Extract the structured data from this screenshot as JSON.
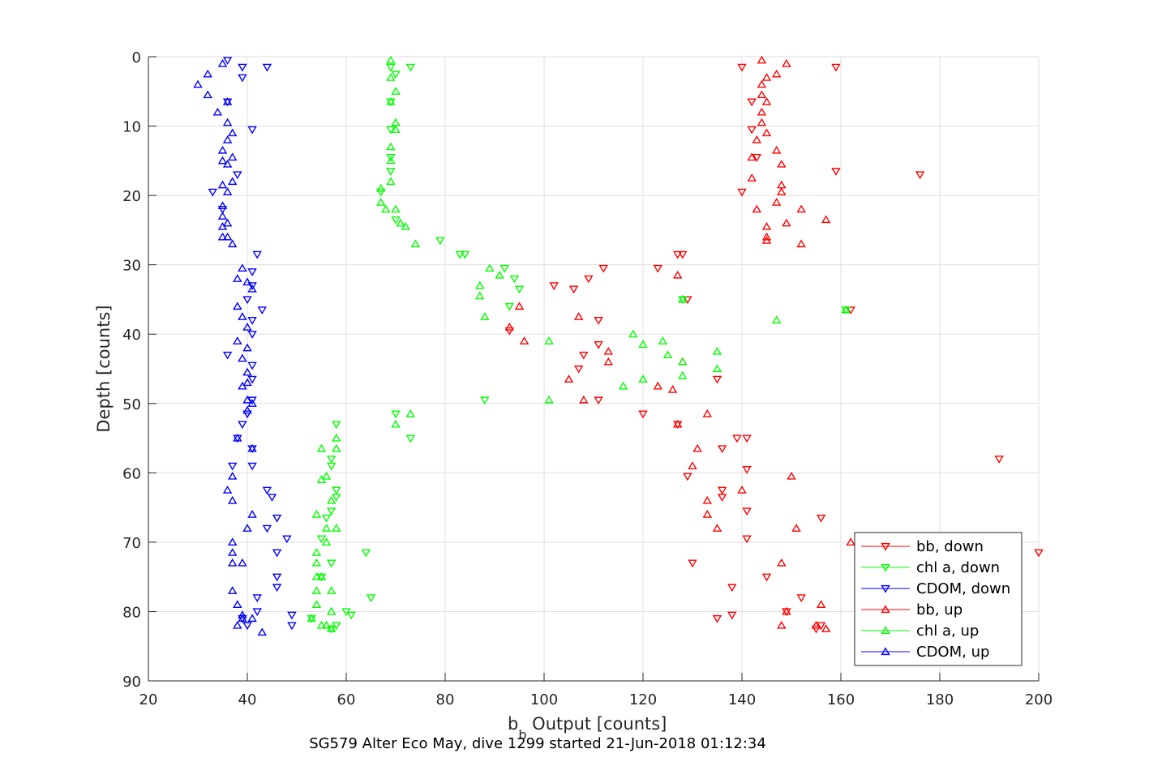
{
  "chart_data": {
    "type": "scatter",
    "caption": "SG579 Alter Eco May, dive 1299 started 21-Jun-2018 01:12:34",
    "xlabel_main": "b",
    "xlabel_sub": "b",
    "xlabel_rest": " Output [counts]",
    "ylabel": "Depth [counts]",
    "xlim": [
      20,
      200
    ],
    "ylim": [
      0,
      90
    ],
    "y_reversed": true,
    "grid": true,
    "legend_position": "bottom-right",
    "xticks": [
      20,
      40,
      60,
      80,
      100,
      120,
      140,
      160,
      180,
      200
    ],
    "yticks": [
      0,
      10,
      20,
      30,
      40,
      50,
      60,
      70,
      80,
      90
    ],
    "series": [
      {
        "name": "bb, down",
        "color": "#ff0000",
        "marker": "triangle-down",
        "points": [
          [
            140,
            1.5
          ],
          [
            159,
            1.5
          ],
          [
            142,
            6.5
          ],
          [
            142,
            10.5
          ],
          [
            143,
            14.5
          ],
          [
            176,
            17
          ],
          [
            159,
            16.5
          ],
          [
            140,
            19.5
          ],
          [
            127,
            28.5
          ],
          [
            128,
            28.5
          ],
          [
            112,
            30.5
          ],
          [
            123,
            30.5
          ],
          [
            106,
            33.5
          ],
          [
            109,
            32
          ],
          [
            102,
            33
          ],
          [
            129,
            35
          ],
          [
            162,
            36.5
          ],
          [
            111,
            38
          ],
          [
            93,
            39.5
          ],
          [
            111,
            41.5
          ],
          [
            108,
            43
          ],
          [
            107,
            45
          ],
          [
            135,
            46.5
          ],
          [
            111,
            49.5
          ],
          [
            120,
            51.5
          ],
          [
            127,
            53
          ],
          [
            139,
            55
          ],
          [
            141,
            55
          ],
          [
            136,
            56.5
          ],
          [
            192,
            58
          ],
          [
            141,
            59.5
          ],
          [
            129,
            60.5
          ],
          [
            136,
            62.5
          ],
          [
            136,
            63.5
          ],
          [
            141,
            65.5
          ],
          [
            156,
            66.5
          ],
          [
            141,
            69.5
          ],
          [
            200,
            71.5
          ],
          [
            130,
            73
          ],
          [
            138,
            76.5
          ],
          [
            145,
            75
          ],
          [
            138,
            80.5
          ],
          [
            135,
            81
          ],
          [
            149,
            80
          ],
          [
            152,
            78
          ],
          [
            156,
            82
          ],
          [
            155,
            82.5
          ]
        ]
      },
      {
        "name": "chl a, down",
        "color": "#00ff00",
        "marker": "triangle-down",
        "points": [
          [
            69,
            1.5
          ],
          [
            73,
            1.5
          ],
          [
            70,
            2.5
          ],
          [
            69,
            6.5
          ],
          [
            69,
            10.5
          ],
          [
            69,
            14.5
          ],
          [
            69,
            16.5
          ],
          [
            67,
            19.5
          ],
          [
            70,
            23.5
          ],
          [
            79,
            26.5
          ],
          [
            83,
            28.5
          ],
          [
            84,
            28.5
          ],
          [
            92,
            30.5
          ],
          [
            94,
            32
          ],
          [
            95,
            33.5
          ],
          [
            128,
            35
          ],
          [
            161,
            36.5
          ],
          [
            93,
            36
          ],
          [
            70,
            51.5
          ],
          [
            73,
            55
          ],
          [
            88,
            49.5
          ],
          [
            58,
            53
          ],
          [
            57,
            58
          ],
          [
            57,
            59
          ],
          [
            58,
            62.5
          ],
          [
            58,
            63.5
          ],
          [
            57,
            65.5
          ],
          [
            56,
            66.5
          ],
          [
            55,
            69.5
          ],
          [
            64,
            71.5
          ],
          [
            57,
            73
          ],
          [
            65,
            78
          ],
          [
            55,
            75
          ],
          [
            60,
            80
          ],
          [
            61,
            80.5
          ],
          [
            53,
            81
          ],
          [
            58,
            82
          ],
          [
            57,
            82.5
          ]
        ]
      },
      {
        "name": "CDOM, down",
        "color": "#0000ff",
        "marker": "triangle-down",
        "points": [
          [
            36,
            0.5
          ],
          [
            39,
            1.5
          ],
          [
            44,
            1.5
          ],
          [
            39,
            3
          ],
          [
            36,
            6.5
          ],
          [
            41,
            10.5
          ],
          [
            38,
            17
          ],
          [
            33,
            19.5
          ],
          [
            35,
            22
          ],
          [
            42,
            28.5
          ],
          [
            41,
            31
          ],
          [
            41,
            33
          ],
          [
            40,
            35
          ],
          [
            43,
            36.5
          ],
          [
            41,
            38
          ],
          [
            41,
            40
          ],
          [
            36,
            43
          ],
          [
            41,
            44.5
          ],
          [
            41,
            46.5
          ],
          [
            41,
            49.5
          ],
          [
            40,
            51.5
          ],
          [
            39,
            53
          ],
          [
            38,
            55
          ],
          [
            41,
            56.5
          ],
          [
            37,
            59
          ],
          [
            41,
            59
          ],
          [
            44,
            62.5
          ],
          [
            45,
            63.5
          ],
          [
            46,
            66.5
          ],
          [
            44,
            68
          ],
          [
            48,
            69.5
          ],
          [
            46,
            71.5
          ],
          [
            46,
            75
          ],
          [
            46,
            76.5
          ],
          [
            42,
            78
          ],
          [
            42,
            80
          ],
          [
            49,
            80.5
          ],
          [
            49,
            82
          ],
          [
            39,
            81
          ],
          [
            40,
            82
          ]
        ]
      },
      {
        "name": "bb, up",
        "color": "#ff0000",
        "marker": "triangle-up",
        "points": [
          [
            144,
            0.5
          ],
          [
            149,
            1
          ],
          [
            147,
            2.5
          ],
          [
            145,
            3
          ],
          [
            144,
            4
          ],
          [
            144,
            5.5
          ],
          [
            145,
            6.5
          ],
          [
            144,
            8
          ],
          [
            144,
            9.5
          ],
          [
            145,
            11
          ],
          [
            143,
            12
          ],
          [
            147,
            13.5
          ],
          [
            142,
            14.5
          ],
          [
            148,
            15.5
          ],
          [
            142,
            17.5
          ],
          [
            148,
            18.5
          ],
          [
            148,
            19.5
          ],
          [
            147,
            21
          ],
          [
            143,
            22
          ],
          [
            152,
            22
          ],
          [
            157,
            23.5
          ],
          [
            149,
            24
          ],
          [
            145,
            24.5
          ],
          [
            145,
            26
          ],
          [
            145,
            26.5
          ],
          [
            152,
            27
          ],
          [
            127,
            31.5
          ],
          [
            95,
            36
          ],
          [
            107,
            37.5
          ],
          [
            93,
            39
          ],
          [
            96,
            41
          ],
          [
            113,
            42.5
          ],
          [
            113,
            44
          ],
          [
            128,
            44
          ],
          [
            105,
            46.5
          ],
          [
            123,
            47.5
          ],
          [
            126,
            48
          ],
          [
            108,
            49.5
          ],
          [
            127,
            53
          ],
          [
            133,
            51.5
          ],
          [
            131,
            56.5
          ],
          [
            130,
            59
          ],
          [
            150,
            60.5
          ],
          [
            140,
            62.5
          ],
          [
            133,
            64
          ],
          [
            133,
            66
          ],
          [
            135,
            68
          ],
          [
            151,
            68
          ],
          [
            162,
            70
          ],
          [
            148,
            73
          ],
          [
            156,
            79
          ],
          [
            149,
            80
          ],
          [
            148,
            82
          ],
          [
            155,
            82
          ],
          [
            157,
            82.5
          ]
        ]
      },
      {
        "name": "chl a, up",
        "color": "#00ff00",
        "marker": "triangle-up",
        "points": [
          [
            69,
            0.5
          ],
          [
            69,
            3
          ],
          [
            70,
            5
          ],
          [
            69,
            6.5
          ],
          [
            70,
            9.5
          ],
          [
            70,
            10.5
          ],
          [
            69,
            13
          ],
          [
            69,
            15
          ],
          [
            69,
            18
          ],
          [
            67,
            19
          ],
          [
            67,
            21
          ],
          [
            68,
            22
          ],
          [
            70,
            22
          ],
          [
            71,
            24
          ],
          [
            72,
            24.5
          ],
          [
            74,
            27
          ],
          [
            89,
            30.5
          ],
          [
            91,
            31.5
          ],
          [
            87,
            33
          ],
          [
            87,
            34.5
          ],
          [
            88,
            37.5
          ],
          [
            101,
            41
          ],
          [
            118,
            40
          ],
          [
            120,
            41.5
          ],
          [
            124,
            41
          ],
          [
            125,
            43
          ],
          [
            135,
            42.5
          ],
          [
            135,
            45
          ],
          [
            128,
            44
          ],
          [
            128,
            46
          ],
          [
            120,
            46.5
          ],
          [
            116,
            47.5
          ],
          [
            101,
            49.5
          ],
          [
            70,
            53
          ],
          [
            73,
            51.5
          ],
          [
            55,
            56.5
          ],
          [
            58,
            56.5
          ],
          [
            58,
            55
          ],
          [
            55,
            61
          ],
          [
            56,
            60.5
          ],
          [
            54,
            66
          ],
          [
            57,
            64
          ],
          [
            56,
            68
          ],
          [
            58,
            68
          ],
          [
            56,
            70
          ],
          [
            54,
            71.5
          ],
          [
            54,
            73
          ],
          [
            54,
            75
          ],
          [
            55,
            75
          ],
          [
            54,
            77
          ],
          [
            57,
            77
          ],
          [
            54,
            79
          ],
          [
            57,
            80
          ],
          [
            53,
            81
          ],
          [
            55,
            82
          ],
          [
            56,
            82
          ],
          [
            57,
            82.5
          ],
          [
            147,
            38
          ],
          [
            161,
            36.5
          ],
          [
            128,
            35
          ]
        ]
      },
      {
        "name": "CDOM, up",
        "color": "#0000ff",
        "marker": "triangle-up",
        "points": [
          [
            35,
            1
          ],
          [
            32,
            2.5
          ],
          [
            30,
            4
          ],
          [
            32,
            5.5
          ],
          [
            36,
            6.5
          ],
          [
            34,
            8
          ],
          [
            36,
            9.5
          ],
          [
            37,
            11
          ],
          [
            36,
            12
          ],
          [
            35,
            13.5
          ],
          [
            35,
            15
          ],
          [
            37,
            14.5
          ],
          [
            36,
            15.5
          ],
          [
            37,
            18
          ],
          [
            35,
            18.5
          ],
          [
            36,
            19.5
          ],
          [
            35,
            21.5
          ],
          [
            35,
            23
          ],
          [
            35,
            24.5
          ],
          [
            36,
            24
          ],
          [
            35,
            26
          ],
          [
            36,
            26
          ],
          [
            37,
            27
          ],
          [
            39,
            30.5
          ],
          [
            38,
            32
          ],
          [
            40,
            32.5
          ],
          [
            41,
            33.5
          ],
          [
            38,
            36
          ],
          [
            39,
            37.5
          ],
          [
            40,
            39
          ],
          [
            38,
            41
          ],
          [
            40,
            42
          ],
          [
            39,
            43.5
          ],
          [
            40,
            45.5
          ],
          [
            40,
            47
          ],
          [
            39,
            47.5
          ],
          [
            40,
            49.5
          ],
          [
            41,
            50
          ],
          [
            40,
            51
          ],
          [
            38,
            55
          ],
          [
            41,
            56.5
          ],
          [
            37,
            60.5
          ],
          [
            36,
            62.5
          ],
          [
            37,
            64
          ],
          [
            41,
            66
          ],
          [
            40,
            68
          ],
          [
            37,
            70
          ],
          [
            37,
            71.5
          ],
          [
            37,
            73
          ],
          [
            39,
            73
          ],
          [
            37,
            77
          ],
          [
            38,
            79
          ],
          [
            39,
            81
          ],
          [
            41,
            81
          ],
          [
            38,
            82
          ],
          [
            43,
            83
          ],
          [
            39,
            80.5
          ]
        ]
      }
    ]
  }
}
